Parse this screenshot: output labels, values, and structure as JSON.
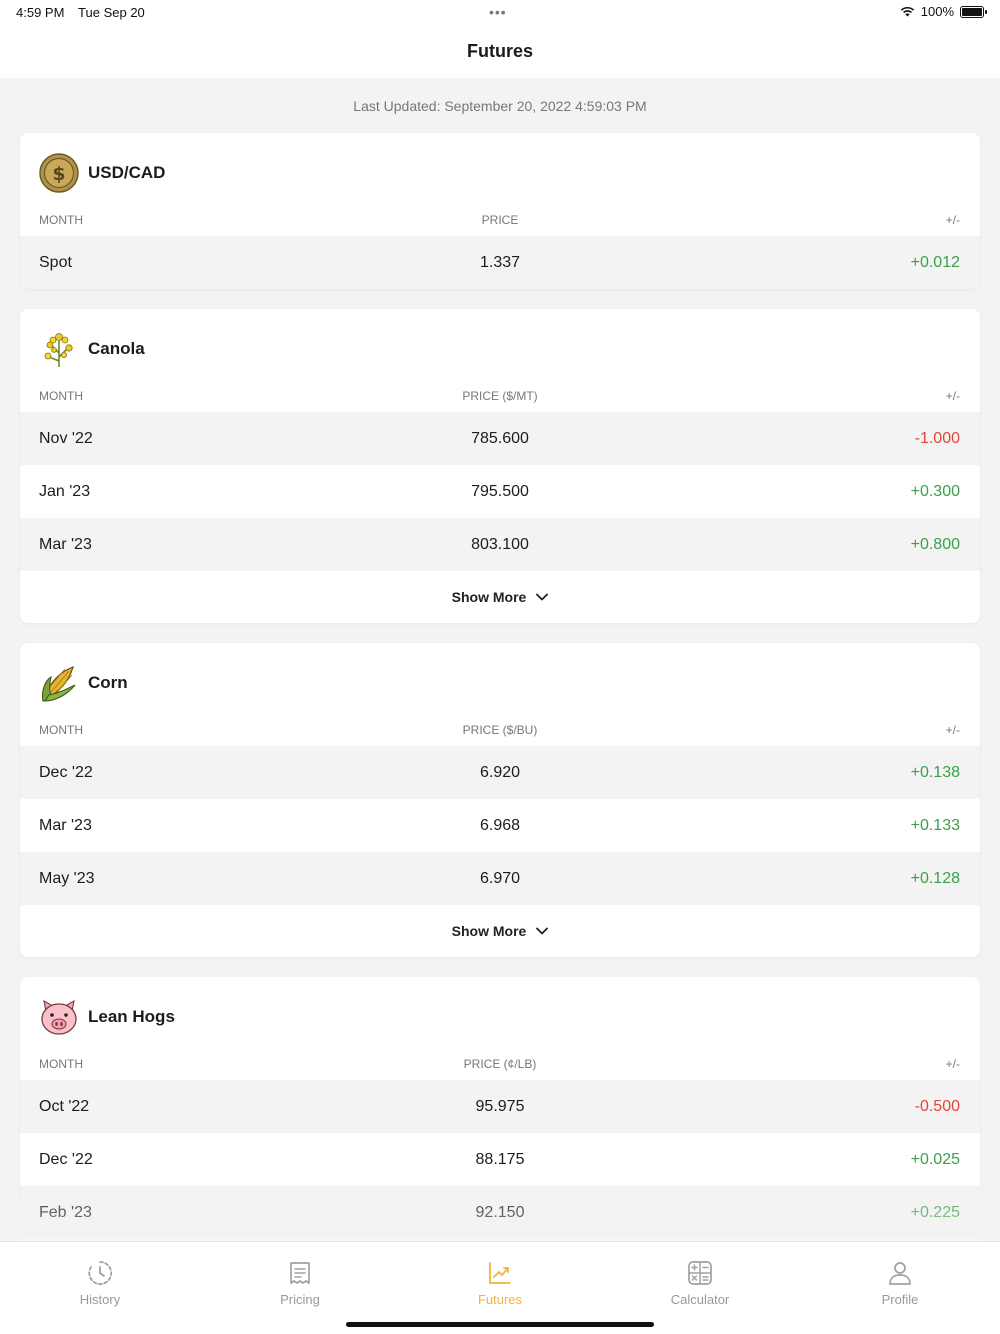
{
  "status": {
    "time": "4:59 PM",
    "date": "Tue Sep 20",
    "battery": "100%"
  },
  "nav": {
    "title": "Futures"
  },
  "last_updated": "Last Updated: September 20, 2022 4:59:03 PM",
  "cards": [
    {
      "title": "USD/CAD",
      "icon": "dollar-coin-icon",
      "col_month": "MONTH",
      "col_price": "PRICE",
      "col_change": "+/-",
      "rows": [
        {
          "month": "Spot",
          "price": "1.337",
          "change": "+0.012"
        }
      ]
    },
    {
      "title": "Canola",
      "icon": "canola-flower-icon",
      "col_month": "MONTH",
      "col_price": "PRICE ($/MT)",
      "col_change": "+/-",
      "rows": [
        {
          "month": "Nov '22",
          "price": "785.600",
          "change": "-1.000"
        },
        {
          "month": "Jan '23",
          "price": "795.500",
          "change": "+0.300"
        },
        {
          "month": "Mar '23",
          "price": "803.100",
          "change": "+0.800"
        }
      ],
      "show_more": "Show More"
    },
    {
      "title": "Corn",
      "icon": "corn-cob-icon",
      "col_month": "MONTH",
      "col_price": "PRICE ($/BU)",
      "col_change": "+/-",
      "rows": [
        {
          "month": "Dec '22",
          "price": "6.920",
          "change": "+0.138"
        },
        {
          "month": "Mar '23",
          "price": "6.968",
          "change": "+0.133"
        },
        {
          "month": "May '23",
          "price": "6.970",
          "change": "+0.128"
        }
      ],
      "show_more": "Show More"
    },
    {
      "title": "Lean Hogs",
      "icon": "pig-icon",
      "col_month": "MONTH",
      "col_price": "PRICE (¢/LB)",
      "col_change": "+/-",
      "rows": [
        {
          "month": "Oct '22",
          "price": "95.975",
          "change": "-0.500"
        },
        {
          "month": "Dec '22",
          "price": "88.175",
          "change": "+0.025"
        },
        {
          "month": "Feb '23",
          "price": "92.150",
          "change": "+0.225"
        }
      ]
    }
  ],
  "colors": {
    "positive": "#3aa04a",
    "negative": "#e2453a",
    "active_tab": "#f1b53d"
  },
  "tabs": [
    {
      "label": "History",
      "icon": "clock-icon"
    },
    {
      "label": "Pricing",
      "icon": "receipt-icon"
    },
    {
      "label": "Futures",
      "icon": "trend-chart-icon",
      "active": true
    },
    {
      "label": "Calculator",
      "icon": "calculator-icon"
    },
    {
      "label": "Profile",
      "icon": "person-icon"
    }
  ]
}
